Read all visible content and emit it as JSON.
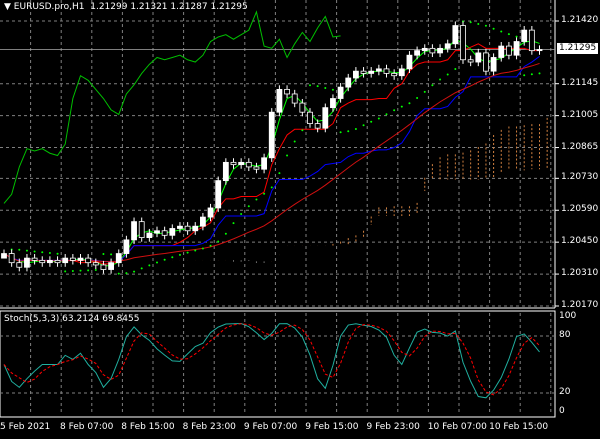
{
  "header": {
    "arrow_icon": "triangle-down-icon",
    "symbol": "EURUSD.pro,H1",
    "ohlc": "1.21299 1.21321 1.21287 1.21295"
  },
  "current_price": "1.21295",
  "stoch_label": "Stoch(5,3,3) 63.2124 69.8455",
  "colors": {
    "bull": "#ffffff",
    "bear": "#ffffff",
    "chikou": "#00c000",
    "ma_fast": "#00ff00",
    "ma_mid": "#ff0000",
    "ma_slow": "#0000ff",
    "ma_long": "#d01010",
    "sar": "#00ff00",
    "cloud_up": "#d08040",
    "cloud_down": "#a0a0a0",
    "stoch_main": "#20b0a0",
    "stoch_signal": "#ff0000",
    "grid": "#808080"
  },
  "chart_data": {
    "type": "candlestick",
    "price_ticks": [
      "1.21420",
      "1.21145",
      "1.21005",
      "1.20865",
      "1.20730",
      "1.20590",
      "1.20450",
      "1.20310",
      "1.20170"
    ],
    "ylim": [
      1.2017,
      1.2142
    ],
    "stoch_ticks": [
      "100",
      "80",
      "20",
      "0"
    ],
    "time_labels": [
      "5 Feb 2021",
      "8 Feb 07:00",
      "8 Feb 15:00",
      "8 Feb 23:00",
      "9 Feb 07:00",
      "9 Feb 15:00",
      "9 Feb 23:00",
      "10 Feb 07:00",
      "10 Feb 15:00"
    ],
    "timeframe": "H1",
    "closes": [
      1.204,
      1.2036,
      1.2034,
      1.2038,
      1.2037,
      1.2036,
      1.2037,
      1.2036,
      1.2038,
      1.2037,
      1.2038,
      1.2036,
      1.2035,
      1.2033,
      1.2036,
      1.204,
      1.2046,
      1.2054,
      1.2047,
      1.2049,
      1.205,
      1.2048,
      1.2051,
      1.2052,
      1.205,
      1.2052,
      1.2056,
      1.206,
      1.2072,
      1.208,
      1.2079,
      1.208,
      1.2078,
      1.2077,
      1.2082,
      1.2102,
      1.2112,
      1.211,
      1.2106,
      1.2102,
      1.2097,
      1.2095,
      1.2104,
      1.2108,
      1.2113,
      1.2117,
      1.212,
      1.2119,
      1.212,
      1.2121,
      1.2119,
      1.2118,
      1.2121,
      1.2127,
      1.2129,
      1.213,
      1.2128,
      1.213,
      1.2132,
      1.214,
      1.2125,
      1.2124,
      1.2128,
      1.212,
      1.2126,
      1.2131,
      1.2127,
      1.2133,
      1.2138,
      1.2129,
      1.21295
    ],
    "stoch_k": 63.2124,
    "stoch_d": 69.8455
  }
}
